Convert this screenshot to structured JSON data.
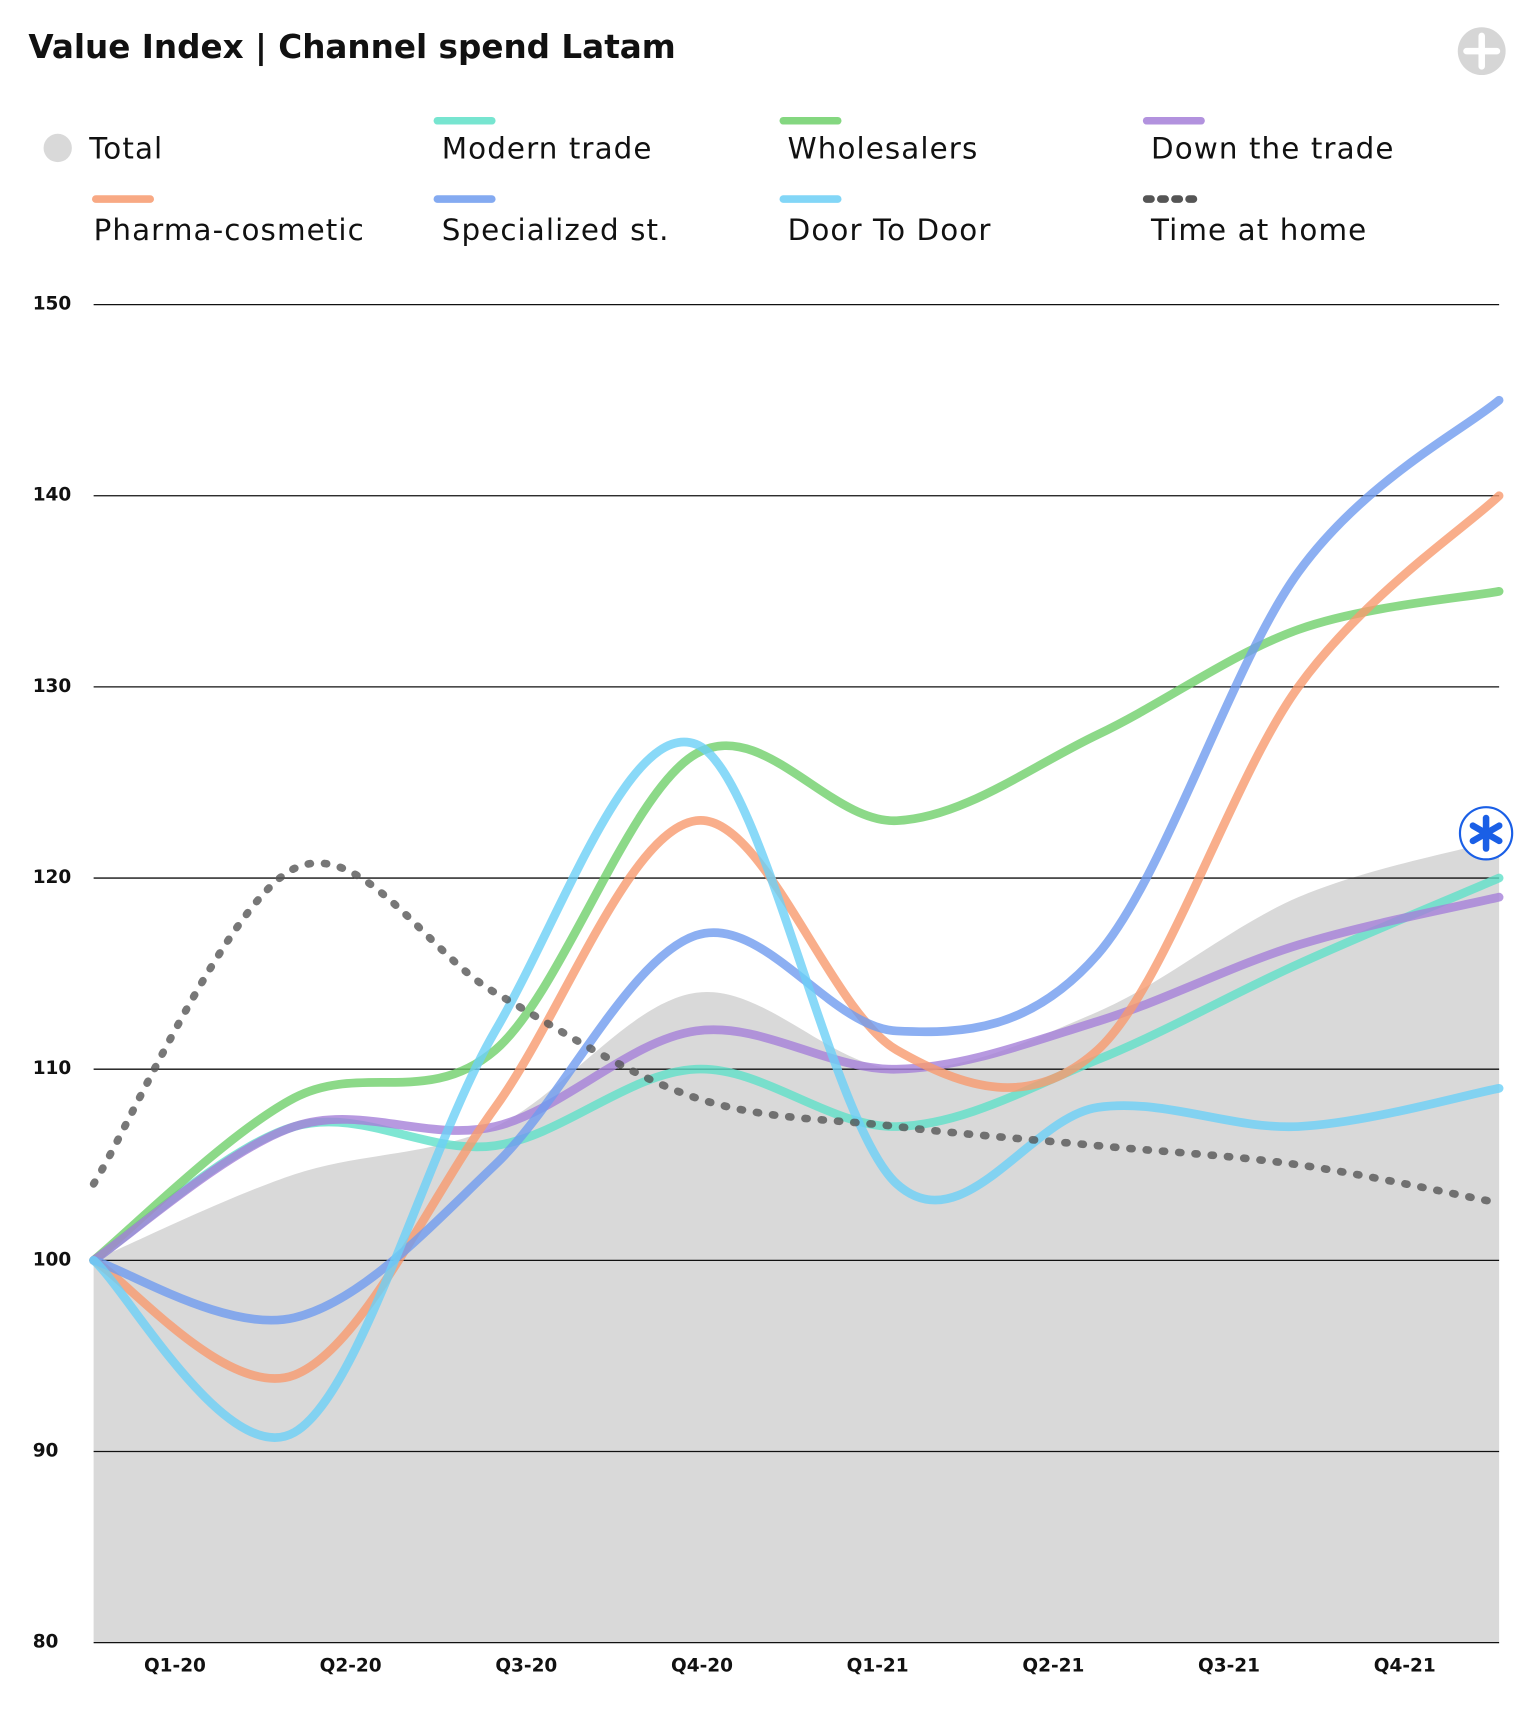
{
  "chart_data": {
    "type": "line",
    "title": "Value Index | Channel spend Latam",
    "categories": [
      "Q1-20",
      "Q2-20",
      "Q3-20",
      "Q4-20",
      "Q1-21",
      "Q2-21",
      "Q3-21",
      "Q4-21"
    ],
    "ylim": [
      80,
      150
    ],
    "yticks": [
      80,
      90,
      100,
      110,
      120,
      130,
      140,
      150
    ],
    "grid": true,
    "series": [
      {
        "name": "Total",
        "color": "#d9d9d9",
        "style": "area",
        "values": [
          100,
          104.5,
          107,
          114,
          110,
          113,
          119,
          122
        ]
      },
      {
        "name": "Modern trade",
        "color": "#5fe0c8",
        "values": [
          100,
          107,
          106,
          110,
          107,
          110.5,
          115.5,
          120
        ]
      },
      {
        "name": "Wholesalers",
        "color": "#6fd06a",
        "values": [
          100,
          108.5,
          111,
          126.5,
          123,
          127.5,
          133,
          135
        ]
      },
      {
        "name": "Down the trade",
        "color": "#a57fd8",
        "values": [
          100,
          107,
          107,
          112,
          110,
          112.5,
          116.5,
          119
        ]
      },
      {
        "name": "Pharma-cosmetic",
        "color": "#f79a6e",
        "values": [
          100,
          94,
          108,
          123,
          111,
          111,
          130,
          140
        ]
      },
      {
        "name": "Specialized st.",
        "color": "#6f9bef",
        "values": [
          100,
          97,
          105,
          117,
          112,
          116,
          136,
          145
        ]
      },
      {
        "name": "Door To Door",
        "color": "#6ccff6",
        "values": [
          100,
          91,
          112,
          127,
          104,
          108,
          107,
          109
        ]
      },
      {
        "name": "Time at home",
        "color": "#555555",
        "style": "dashed",
        "values": [
          104,
          120.5,
          114,
          108.5,
          107,
          106,
          105,
          103
        ]
      }
    ]
  }
}
